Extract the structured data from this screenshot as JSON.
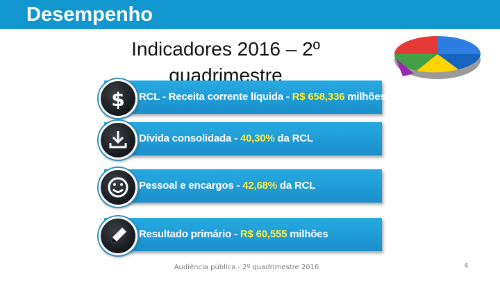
{
  "header": {
    "title": "Desempenho"
  },
  "subtitle": {
    "line": "Indicadores 2016 – 2º quadrimestre"
  },
  "indicators": [
    {
      "icon": "dollar-icon",
      "prefix": "RCL - Receita corrente líquida - ",
      "value": "R$ 658,336",
      "suffix": " milhões"
    },
    {
      "icon": "download-icon",
      "prefix": "Dívida consolidada - ",
      "value": "40,30%",
      "suffix": " da RCL"
    },
    {
      "icon": "smiley-icon",
      "prefix": "Pessoal e encargos - ",
      "value": "42,68%",
      "suffix": " da RCL"
    },
    {
      "icon": "pencil-icon",
      "prefix": "Resultado primário - ",
      "value": "R$ 60,555",
      "suffix": " milhões"
    }
  ],
  "footer": {
    "text": "Audiência pública - 2º quadrimestre 2016",
    "page_number": "4"
  },
  "colors": {
    "bar": "#1296cf",
    "row": "#26a9e1",
    "highlight": "#ffeb3b"
  }
}
